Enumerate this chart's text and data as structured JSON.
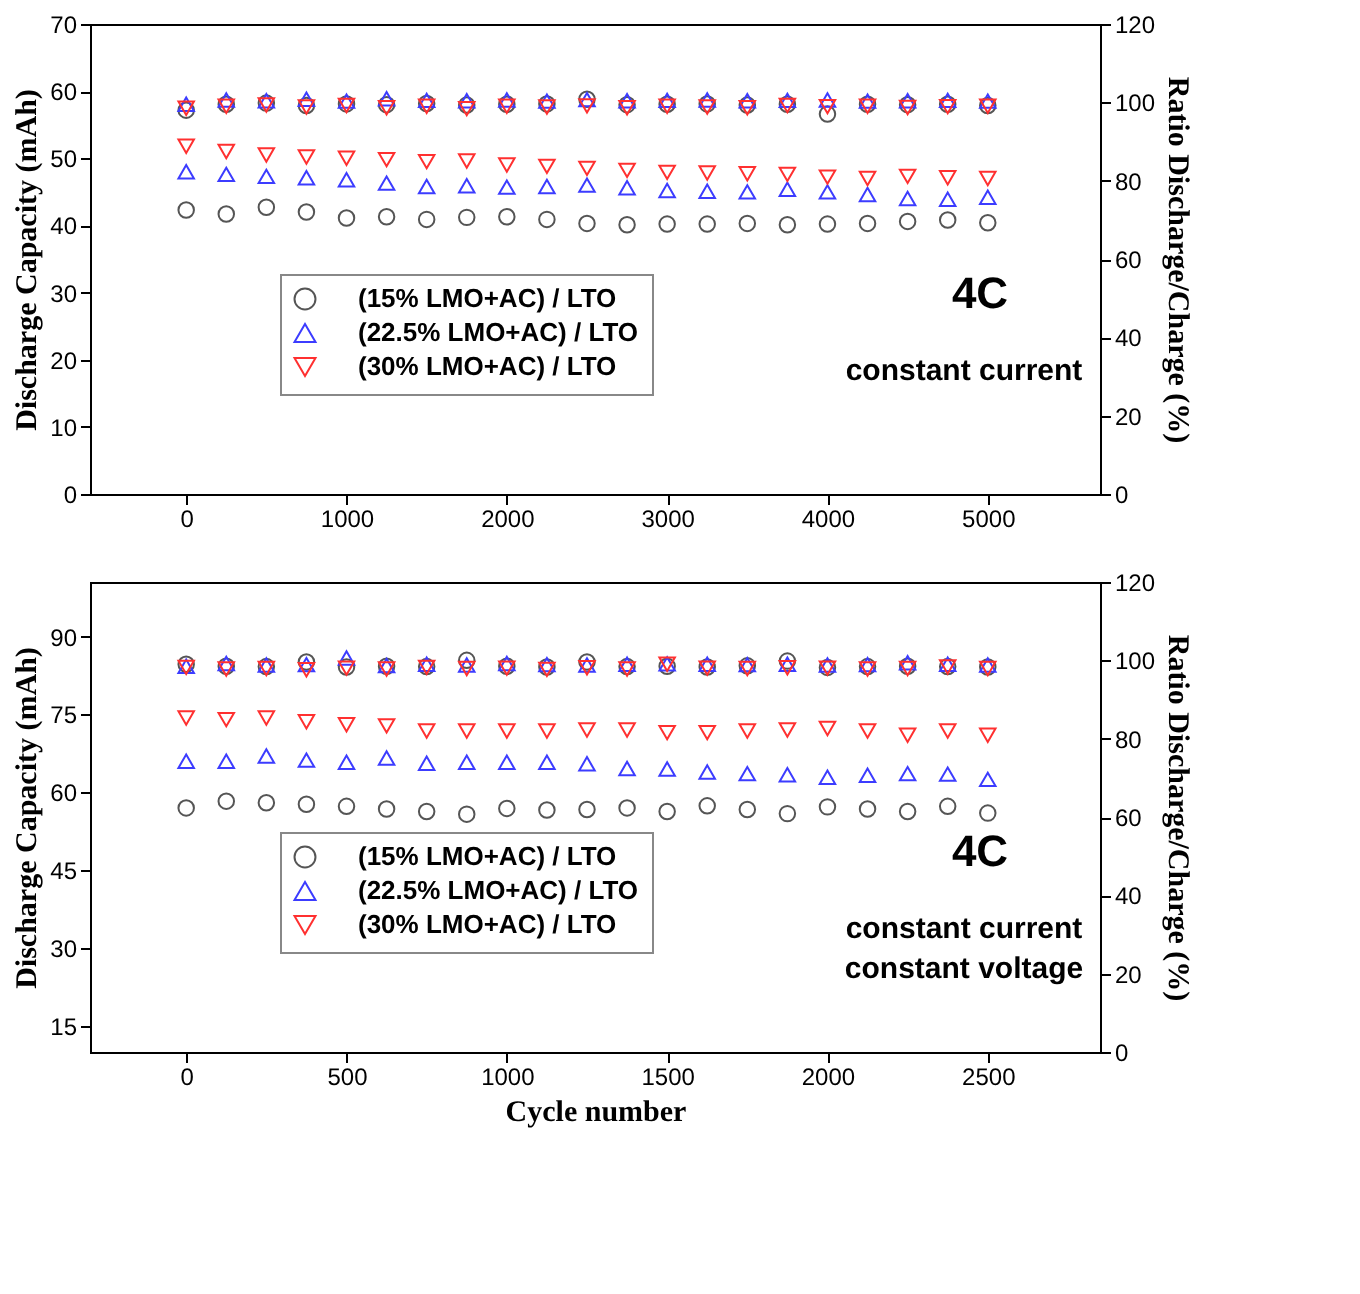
{
  "chart_data": [
    {
      "type": "scatter",
      "ylabel": "Discharge Capacity (mAh)",
      "y2label": "Ratio Discharge/Charge (%)",
      "xlim": [
        -600,
        5700
      ],
      "xticks": [
        0,
        1000,
        2000,
        3000,
        4000,
        5000
      ],
      "ylim": [
        0,
        70
      ],
      "yticks": [
        0,
        10,
        20,
        30,
        40,
        50,
        60,
        70
      ],
      "y2lim": [
        0,
        120
      ],
      "y2ticks": [
        0,
        20,
        40,
        60,
        80,
        100,
        120
      ],
      "grid": false,
      "legend": "bottom left",
      "annotations": [
        "4C",
        "constant current"
      ],
      "x": [
        0,
        250,
        500,
        750,
        1000,
        1250,
        1500,
        1750,
        2000,
        2250,
        2500,
        2750,
        3000,
        3250,
        3500,
        3750,
        4000,
        4250,
        4500,
        4750,
        5000
      ],
      "series": [
        {
          "name": "(15% LMO+AC) / LTO",
          "color": "#555555",
          "marker": "circle",
          "values": [
            42.3,
            41.7,
            42.7,
            42.0,
            41.1,
            41.3,
            40.9,
            41.2,
            41.3,
            40.9,
            40.3,
            40.1,
            40.2,
            40.2,
            40.3,
            40.1,
            40.2,
            40.3,
            40.6,
            40.8,
            40.4
          ]
        },
        {
          "name": "(22.5% LMO+AC) / LTO",
          "color": "#3c3cff",
          "marker": "triangle",
          "values": [
            48.0,
            47.6,
            47.3,
            47.1,
            46.8,
            46.3,
            45.8,
            45.9,
            45.7,
            45.8,
            46.0,
            45.6,
            45.2,
            45.1,
            45.0,
            45.4,
            45.0,
            44.6,
            44.0,
            43.9,
            44.2
          ]
        },
        {
          "name": "(30% LMO+AC) / LTO",
          "color": "#ff3030",
          "marker": "triangle-down",
          "values": [
            51.8,
            51.0,
            50.5,
            50.2,
            50.0,
            49.8,
            49.5,
            49.6,
            49.0,
            48.8,
            48.5,
            48.2,
            47.9,
            47.8,
            47.7,
            47.6,
            47.2,
            47.0,
            47.3,
            47.1,
            47.0
          ]
        },
        {
          "axis": "y2",
          "color": "#555555",
          "marker": "circle",
          "values": [
            98.0,
            99.5,
            99.8,
            99.2,
            99.6,
            99.4,
            99.7,
            99.3,
            99.5,
            99.6,
            100.8,
            99.4,
            99.5,
            99.6,
            99.3,
            99.5,
            97.0,
            99.5,
            99.4,
            99.5,
            99.2
          ]
        },
        {
          "axis": "y2",
          "color": "#3c3cff",
          "marker": "triangle",
          "values": [
            99.5,
            100.6,
            100.4,
            100.8,
            100.3,
            100.9,
            100.5,
            100.4,
            100.6,
            100.3,
            100.7,
            100.4,
            100.5,
            100.6,
            100.4,
            100.5,
            100.6,
            100.3,
            100.4,
            100.5,
            100.3
          ]
        },
        {
          "axis": "y2",
          "color": "#ff3030",
          "marker": "triangle-down",
          "values": [
            98.5,
            99.0,
            99.3,
            98.8,
            99.2,
            98.6,
            99.0,
            98.4,
            99.0,
            98.8,
            99.1,
            98.6,
            99.0,
            98.8,
            98.6,
            99.2,
            98.9,
            99.0,
            98.7,
            98.9,
            99.0
          ]
        }
      ]
    },
    {
      "type": "scatter",
      "xlabel": "Cycle number",
      "ylabel": "Discharge Capacity (mAh)",
      "y2label": "Ratio Discharge/Charge (%)",
      "xlim": [
        -300,
        2850
      ],
      "xticks": [
        0,
        500,
        1000,
        1500,
        2000,
        2500
      ],
      "ylim": [
        10,
        100.5
      ],
      "yticks": [
        15,
        30,
        45,
        60,
        75,
        90
      ],
      "y2lim": [
        0,
        120
      ],
      "y2ticks": [
        0,
        20,
        40,
        60,
        80,
        100,
        120
      ],
      "grid": false,
      "legend": "bottom left",
      "annotations": [
        "4C",
        "constant current",
        "constant voltage"
      ],
      "x": [
        0,
        125,
        250,
        375,
        500,
        625,
        750,
        875,
        1000,
        1125,
        1250,
        1375,
        1500,
        1625,
        1750,
        1875,
        2000,
        2125,
        2250,
        2375,
        2500
      ],
      "series": [
        {
          "name": "(15% LMO+AC) / LTO",
          "color": "#555555",
          "marker": "circle",
          "values": [
            57.0,
            58.3,
            58.0,
            57.7,
            57.3,
            56.8,
            56.3,
            55.8,
            56.9,
            56.6,
            56.7,
            57.0,
            56.3,
            57.4,
            56.7,
            55.9,
            57.2,
            56.8,
            56.3,
            57.3,
            56.0
          ]
        },
        {
          "name": "(22.5% LMO+AC) / LTO",
          "color": "#3c3cff",
          "marker": "triangle",
          "values": [
            66.0,
            66.0,
            67.0,
            66.2,
            65.8,
            66.6,
            65.6,
            65.8,
            65.8,
            65.8,
            65.5,
            64.6,
            64.5,
            63.9,
            63.6,
            63.4,
            62.9,
            63.3,
            63.6,
            63.5,
            62.5
          ]
        },
        {
          "name": "(30% LMO+AC) / LTO",
          "color": "#ff3030",
          "marker": "triangle-down",
          "values": [
            74.3,
            74.0,
            74.3,
            73.6,
            73.0,
            72.8,
            71.8,
            71.8,
            71.8,
            71.8,
            72.0,
            72.0,
            71.5,
            71.5,
            71.8,
            72.0,
            72.3,
            71.8,
            71.0,
            71.8,
            71.0
          ]
        },
        {
          "axis": "y2",
          "color": "#555555",
          "marker": "circle",
          "values": [
            99.0,
            98.5,
            98.4,
            99.6,
            98.3,
            98.5,
            98.4,
            100.0,
            98.5,
            98.3,
            99.6,
            98.4,
            98.5,
            98.3,
            98.6,
            99.8,
            98.2,
            98.4,
            98.5,
            98.4,
            98.3
          ]
        },
        {
          "axis": "y2",
          "color": "#3c3cff",
          "marker": "triangle",
          "values": [
            98.5,
            99.2,
            98.8,
            98.9,
            100.6,
            98.7,
            99.0,
            98.8,
            99.2,
            98.9,
            98.8,
            99.0,
            99.1,
            99.0,
            98.9,
            99.0,
            98.8,
            98.9,
            99.4,
            99.0,
            98.8
          ]
        },
        {
          "axis": "y2",
          "color": "#ff3030",
          "marker": "triangle-down",
          "values": [
            98.2,
            97.8,
            97.9,
            97.6,
            98.0,
            97.8,
            98.2,
            97.9,
            98.0,
            97.7,
            98.1,
            97.8,
            99.0,
            98.0,
            97.9,
            98.1,
            98.0,
            97.8,
            97.9,
            98.3,
            97.9
          ]
        }
      ]
    }
  ]
}
